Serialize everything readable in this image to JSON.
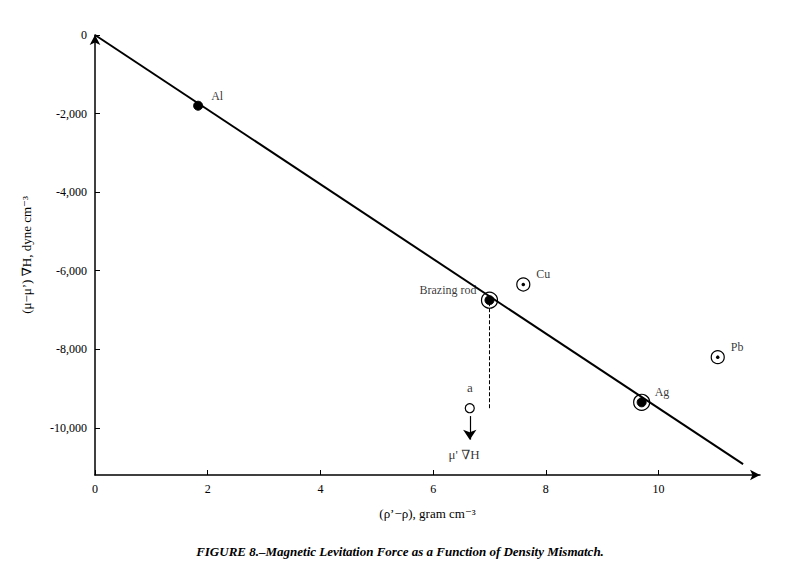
{
  "chart_data": {
    "type": "scatter",
    "caption": "FIGURE 8.–Magnetic Levitation Force as a Function of Density Mismatch.",
    "xlabel": "(ρ’−ρ), gram cm⁻³",
    "ylabel": "(μ−μ’) ∇H, dyne cm⁻³",
    "xlim": [
      0,
      11.8
    ],
    "ylim": [
      -11200,
      0
    ],
    "xticks": [
      0,
      2,
      4,
      6,
      8,
      10
    ],
    "yticks": [
      0,
      {
        "value": -2000,
        "label": "-2,000"
      },
      {
        "value": -4000,
        "label": "-4,000"
      },
      {
        "value": -6000,
        "label": "-6,000"
      },
      {
        "value": -8000,
        "label": "-8,000"
      },
      {
        "value": -10000,
        "label": "-10,000"
      }
    ],
    "grid": false,
    "series": [
      {
        "type": "line",
        "x": [
          0.0,
          11.5
        ],
        "values": [
          0.0,
          -10925
        ],
        "color": "#000000"
      },
      {
        "type": "scatter",
        "x": [
          1.83,
          7.0,
          7.6,
          9.7,
          11.05
        ],
        "values": [
          -1800,
          -6750,
          -6350,
          -9350,
          -8200
        ],
        "labels": [
          "Al",
          "Brazing rod",
          "Cu",
          "Ag",
          "Pb"
        ],
        "markers": [
          "filled",
          "double",
          "ring_dot",
          "double",
          "ring_dot"
        ],
        "color": "#000000"
      },
      {
        "type": "line",
        "line_style": "dashed",
        "x": [
          7.0,
          7.0
        ],
        "values": [
          -9500,
          -6750
        ],
        "color": "#000000"
      },
      {
        "type": "arrow",
        "x": [
          6.65,
          6.65
        ],
        "values": [
          -9700,
          -10300
        ],
        "color": "#000000"
      },
      {
        "type": "scatter",
        "marker": "open_circle",
        "x": [
          6.65
        ],
        "values": [
          -9500
        ],
        "color": "#000000"
      }
    ],
    "annotations": [
      {
        "text": "a",
        "x": 6.65,
        "y": -9200
      },
      {
        "text": "μ' ∇H",
        "x": 6.55,
        "y": -10450
      }
    ]
  }
}
